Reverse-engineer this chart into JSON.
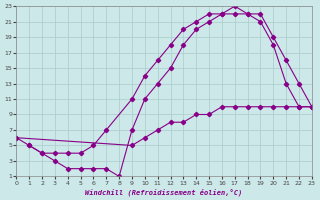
{
  "xlabel": "Windchill (Refroidissement éolien,°C)",
  "bg_color": "#cce8e8",
  "line_color": "#880088",
  "grid_color": "#aacccc",
  "xlim": [
    0,
    23
  ],
  "ylim": [
    1,
    23
  ],
  "xticks": [
    0,
    1,
    2,
    3,
    4,
    5,
    6,
    7,
    8,
    9,
    10,
    11,
    12,
    13,
    14,
    15,
    16,
    17,
    18,
    19,
    20,
    21,
    22,
    23
  ],
  "yticks": [
    1,
    3,
    5,
    7,
    9,
    11,
    13,
    15,
    17,
    19,
    21,
    23
  ],
  "figsize": [
    3.2,
    2.0
  ],
  "dpi": 100,
  "line1_x": [
    0,
    1,
    2,
    3,
    4,
    5,
    6,
    7,
    9,
    10,
    11,
    12,
    13,
    14,
    15,
    16,
    17,
    18,
    19,
    20,
    21,
    22,
    23
  ],
  "line1_y": [
    6,
    5,
    4,
    4,
    4,
    4,
    5,
    7,
    11,
    14,
    16,
    18,
    20,
    21,
    22,
    22,
    23,
    22,
    22,
    19,
    16,
    13,
    10
  ],
  "line2_x": [
    0,
    9,
    10,
    11,
    12,
    13,
    14,
    15,
    16,
    17,
    18,
    19,
    20,
    21,
    22,
    23
  ],
  "line2_y": [
    6,
    5,
    6,
    7,
    8,
    8,
    9,
    9,
    10,
    10,
    10,
    10,
    10,
    10,
    10,
    10
  ],
  "line3_x": [
    1,
    2,
    3,
    4,
    5,
    6,
    7,
    8,
    9,
    10,
    11,
    12,
    13,
    14,
    15,
    16,
    17,
    18,
    19,
    20,
    21,
    22,
    23
  ],
  "line3_y": [
    5,
    4,
    3,
    2,
    2,
    2,
    2,
    1,
    7,
    11,
    13,
    15,
    18,
    20,
    21,
    22,
    22,
    22,
    21,
    18,
    13,
    10,
    10
  ]
}
